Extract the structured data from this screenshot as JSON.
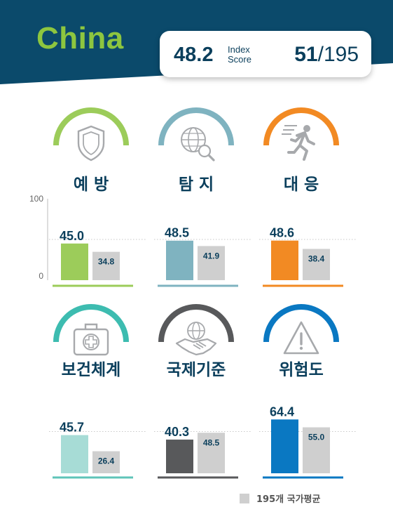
{
  "header": {
    "country": "China",
    "score": "48.2",
    "score_label_line1": "Index",
    "score_label_line2": "Score",
    "rank": "51",
    "rank_total": "/195"
  },
  "colors": {
    "header_bg": "#0b4a6b",
    "title_green": "#8dc63f",
    "average_bar": "#cfcfcf",
    "value_text": "#0b3f5c"
  },
  "legend": {
    "label": "195개 국가평균"
  },
  "chart_data": {
    "type": "bar",
    "ylim": [
      0,
      100
    ],
    "y_ticks": [
      "100",
      "0"
    ],
    "categories": [
      "예 방",
      "탐 지",
      "대 응",
      "보건체계",
      "국제기준",
      "위험도"
    ],
    "series": [
      {
        "role": "country",
        "values": [
          45.0,
          48.5,
          48.6,
          45.7,
          40.3,
          64.4
        ]
      },
      {
        "name": "195개 국가평균",
        "values": [
          34.8,
          41.9,
          38.4,
          26.4,
          48.5,
          55.0
        ]
      }
    ],
    "value_labels_country": [
      "45.0",
      "48.5",
      "48.6",
      "45.7",
      "40.3",
      "64.4"
    ],
    "value_labels_average": [
      "34.8",
      "41.9",
      "38.4",
      "26.4",
      "48.5",
      "55.0"
    ],
    "panel_colors": [
      "#9ccc5a",
      "#7fb3c0",
      "#f28a23",
      "#a7dcd6",
      "#58595b",
      "#0a78c2"
    ],
    "baseline_colors": [
      "#9ccc5a",
      "#7fb3c0",
      "#f28a23",
      "#5fc4b8",
      "#58595b",
      "#0a78c2"
    ],
    "arc_colors": [
      "#9ccc5a",
      "#7fb3c0",
      "#f28a23",
      "#3dbcb0",
      "#58595b",
      "#0a78c2"
    ],
    "icons": [
      "shield-icon",
      "globe-magnifier-icon",
      "running-person-icon",
      "first-aid-kit-icon",
      "handshake-globe-icon",
      "warning-triangle-icon"
    ]
  }
}
